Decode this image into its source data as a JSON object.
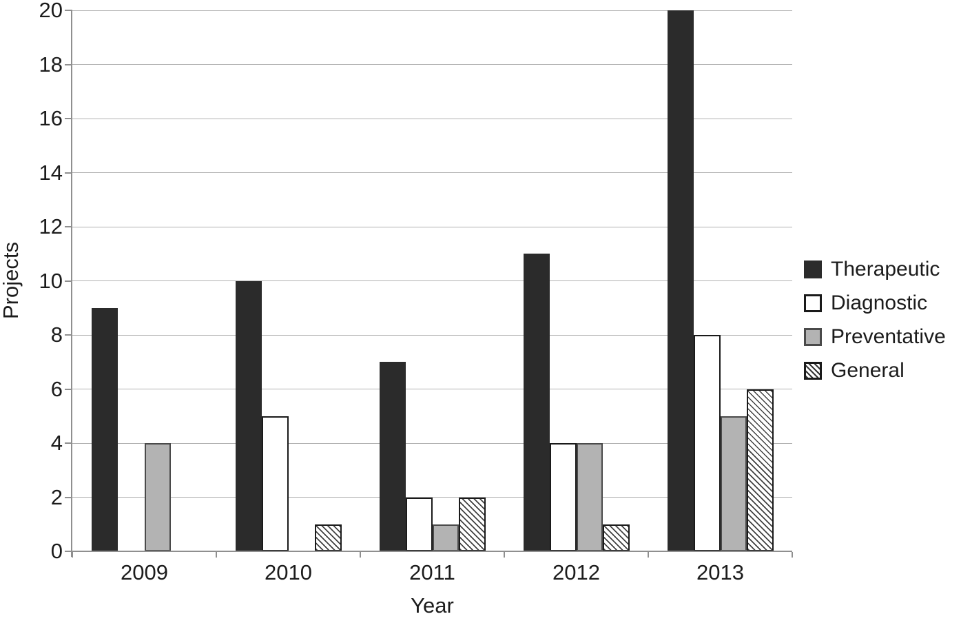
{
  "chart_data": {
    "type": "bar",
    "title": "",
    "xlabel": "Year",
    "ylabel": "Projects",
    "categories": [
      "2009",
      "2010",
      "2011",
      "2012",
      "2013"
    ],
    "series": [
      {
        "name": "Therapeutic",
        "style": "solid-dark",
        "values": [
          9,
          10,
          7,
          11,
          20
        ]
      },
      {
        "name": "Diagnostic",
        "style": "white-outline",
        "values": [
          0,
          5,
          2,
          4,
          8
        ]
      },
      {
        "name": "Preventative",
        "style": "solid-gray",
        "values": [
          4,
          0,
          1,
          4,
          5
        ]
      },
      {
        "name": "General",
        "style": "hatch",
        "values": [
          0,
          1,
          2,
          1,
          6
        ]
      }
    ],
    "ylim": [
      0,
      20
    ],
    "yticks": [
      0,
      2,
      4,
      6,
      8,
      10,
      12,
      14,
      16,
      18,
      20
    ],
    "grid": true,
    "legend_position": "right"
  },
  "colors": {
    "bar_dark": "#2b2b2b",
    "bar_gray": "#b3b3b3",
    "bar_outline": "#1a1a1a",
    "gridline": "#b0b0b0",
    "axis": "#8f8f8f",
    "text": "#1c1c1c"
  }
}
